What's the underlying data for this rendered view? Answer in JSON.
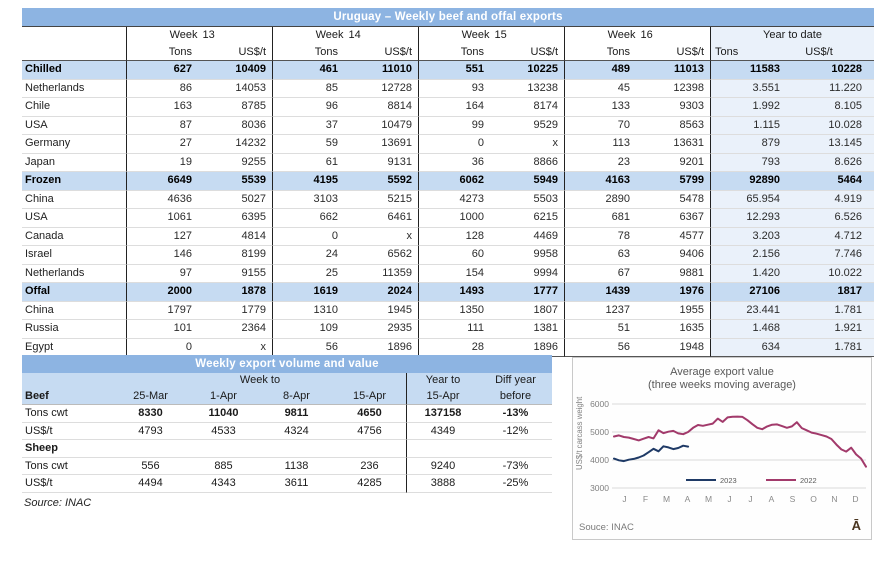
{
  "colors": {
    "title_bar_blue": "#8DB4E2",
    "band_blue": "#C6DBF2",
    "ytd_bg": "#EAF1FA",
    "line_2023": "#1F3A66",
    "line_2022": "#A23A6B"
  },
  "table1": {
    "title": "Uruguay – Weekly beef and offal exports",
    "col_groups": [
      "Week 13",
      "Week 14",
      "Week 15",
      "Week 16"
    ],
    "ytd_group": "Year to date",
    "subheaders": [
      "Tons",
      "US$/t"
    ],
    "rows": [
      {
        "label": "Chilled",
        "bold": true,
        "values": [
          "627",
          "10409",
          "461",
          "11010",
          "551",
          "10225",
          "489",
          "11013",
          "11583",
          "10228"
        ]
      },
      {
        "label": "Netherlands",
        "bold": false,
        "values": [
          "86",
          "14053",
          "85",
          "12728",
          "93",
          "13238",
          "45",
          "12398",
          "3.551",
          "11.220"
        ]
      },
      {
        "label": "Chile",
        "bold": false,
        "values": [
          "163",
          "8785",
          "96",
          "8814",
          "164",
          "8174",
          "133",
          "9303",
          "1.992",
          "8.105"
        ]
      },
      {
        "label": "USA",
        "bold": false,
        "values": [
          "87",
          "8036",
          "37",
          "10479",
          "99",
          "9529",
          "70",
          "8563",
          "1.115",
          "10.028"
        ]
      },
      {
        "label": "Germany",
        "bold": false,
        "values": [
          "27",
          "14232",
          "59",
          "13691",
          "0",
          "x",
          "113",
          "13631",
          "879",
          "13.145"
        ]
      },
      {
        "label": "Japan",
        "bold": false,
        "values": [
          "19",
          "9255",
          "61",
          "9131",
          "36",
          "8866",
          "23",
          "9201",
          "793",
          "8.626"
        ]
      },
      {
        "label": "Frozen",
        "bold": true,
        "values": [
          "6649",
          "5539",
          "4195",
          "5592",
          "6062",
          "5949",
          "4163",
          "5799",
          "92890",
          "5464"
        ]
      },
      {
        "label": "China",
        "bold": false,
        "values": [
          "4636",
          "5027",
          "3103",
          "5215",
          "4273",
          "5503",
          "2890",
          "5478",
          "65.954",
          "4.919"
        ]
      },
      {
        "label": "USA",
        "bold": false,
        "values": [
          "1061",
          "6395",
          "662",
          "6461",
          "1000",
          "6215",
          "681",
          "6367",
          "12.293",
          "6.526"
        ]
      },
      {
        "label": "Canada",
        "bold": false,
        "values": [
          "127",
          "4814",
          "0",
          "x",
          "128",
          "4469",
          "78",
          "4577",
          "3.203",
          "4.712"
        ]
      },
      {
        "label": "Israel",
        "bold": false,
        "values": [
          "146",
          "8199",
          "24",
          "6562",
          "60",
          "9958",
          "63",
          "9406",
          "2.156",
          "7.746"
        ]
      },
      {
        "label": "Netherlands",
        "bold": false,
        "values": [
          "97",
          "9155",
          "25",
          "11359",
          "154",
          "9994",
          "67",
          "9881",
          "1.420",
          "10.022"
        ]
      },
      {
        "label": "Offal",
        "bold": true,
        "values": [
          "2000",
          "1878",
          "1619",
          "2024",
          "1493",
          "1777",
          "1439",
          "1976",
          "27106",
          "1817"
        ]
      },
      {
        "label": "China",
        "bold": false,
        "values": [
          "1797",
          "1779",
          "1310",
          "1945",
          "1350",
          "1807",
          "1237",
          "1955",
          "23.441",
          "1.781"
        ]
      },
      {
        "label": "Russia",
        "bold": false,
        "values": [
          "101",
          "2364",
          "109",
          "2935",
          "111",
          "1381",
          "51",
          "1635",
          "1.468",
          "1.921"
        ]
      },
      {
        "label": "Egypt",
        "bold": false,
        "values": [
          "0",
          "x",
          "56",
          "1896",
          "28",
          "1896",
          "56",
          "1948",
          "634",
          "1.781"
        ]
      }
    ]
  },
  "table2": {
    "title": "Weekly export volume and value",
    "span_headers": [
      "",
      "Week to",
      "Year to",
      "Diff year"
    ],
    "header_row": [
      "Beef",
      "25-Mar",
      "1-Apr",
      "8-Apr",
      "15-Apr",
      "15-Apr",
      "before"
    ],
    "rows": [
      {
        "label": "Tons cwt",
        "bold_label": false,
        "bold_values": true,
        "values": [
          "8330",
          "11040",
          "9811",
          "4650",
          "137158",
          "-13%"
        ]
      },
      {
        "label": "US$/t",
        "bold_label": false,
        "bold_values": false,
        "values": [
          "4793",
          "4533",
          "4324",
          "4756",
          "4349",
          "-12%"
        ]
      },
      {
        "label": "Sheep",
        "bold_label": true,
        "bold_values": false,
        "values": [
          "",
          "",
          "",
          "",
          "",
          ""
        ]
      },
      {
        "label": "Tons cwt",
        "bold_label": false,
        "bold_values": false,
        "values": [
          "556",
          "885",
          "1138",
          "236",
          "9240",
          "-73%"
        ]
      },
      {
        "label": "US$/t",
        "bold_label": false,
        "bold_values": false,
        "values": [
          "4494",
          "4343",
          "3611",
          "4285",
          "3888",
          "-25%"
        ]
      }
    ],
    "source": "Source: INAC"
  },
  "chart_data": {
    "type": "line",
    "title": "Average export value",
    "subtitle": "(three weeks moving average)",
    "ylabel": "US$/t carcass weight",
    "ylim": [
      3000,
      6000
    ],
    "yticks": [
      3000,
      4000,
      5000,
      6000
    ],
    "x_unit": "week of year (1-52)",
    "month_labels": [
      "J",
      "F",
      "M",
      "A",
      "M",
      "J",
      "J",
      "A",
      "S",
      "O",
      "N",
      "D"
    ],
    "grid": "horizontal only",
    "legend_position": "bottom inside",
    "source": "Souce: INAC",
    "logo_glyph": "Ā",
    "series": [
      {
        "name": "2023",
        "color": "#1F3A66",
        "values": [
          4050,
          3990,
          3960,
          4010,
          4040,
          4090,
          4160,
          4280,
          4400,
          4310,
          4490,
          4450,
          4390,
          4430,
          4510,
          4480
        ]
      },
      {
        "name": "2022",
        "color": "#A23A6B",
        "values": [
          4840,
          4880,
          4820,
          4800,
          4750,
          4700,
          4760,
          4820,
          4770,
          5060,
          4960,
          5010,
          5040,
          4950,
          4920,
          5000,
          5150,
          5250,
          5220,
          5260,
          5300,
          5480,
          5360,
          5520,
          5545,
          5550,
          5540,
          5420,
          5280,
          5150,
          5100,
          5200,
          5260,
          5270,
          5210,
          5150,
          5200,
          5350,
          5140,
          5060,
          4980,
          4940,
          4890,
          4840,
          4750,
          4550,
          4380,
          4300,
          4440,
          4200,
          4050,
          3760
        ]
      }
    ]
  }
}
